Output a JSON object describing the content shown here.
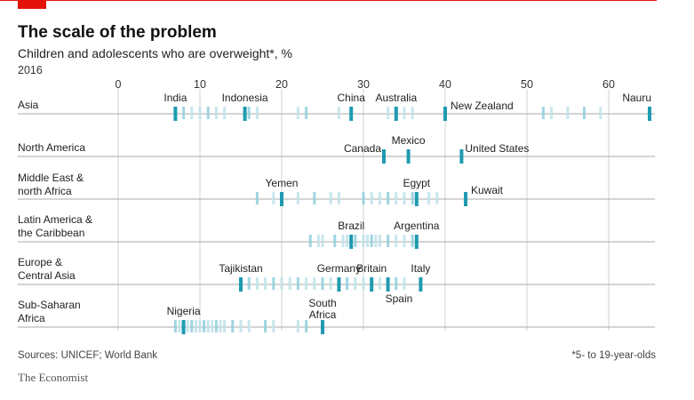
{
  "header": {
    "title": "The scale of the problem",
    "subtitle": "Children and adolescents who are overweight*, %",
    "year": "2016"
  },
  "footer": {
    "sources": "Sources: UNICEF; World Bank",
    "note": "*5- to 19-year-olds",
    "brand": "The Economist"
  },
  "colors": {
    "accent_red": "#e3120b",
    "highlight": "#1f9bb0",
    "strip_light": "#bfe2ea",
    "strip_mid": "#8fcfdc",
    "grid": "#d0d0d0",
    "axis_line": "#aaaaaa"
  },
  "chart_data": {
    "type": "strip",
    "x_range": [
      0,
      65
    ],
    "x_ticks": [
      0,
      10,
      20,
      30,
      40,
      50,
      60
    ],
    "grid": true,
    "rows": [
      {
        "region": "Asia",
        "others": [
          8,
          9,
          10,
          11,
          12,
          13,
          16,
          17,
          22,
          23,
          27,
          33,
          34,
          35,
          36,
          52,
          53,
          55,
          57,
          59
        ],
        "highlights": [
          {
            "name": "India",
            "value": 7
          },
          {
            "name": "Indonesia",
            "value": 15.5
          },
          {
            "name": "China",
            "value": 28.5
          },
          {
            "name": "Australia",
            "value": 34
          },
          {
            "name": "New Zealand",
            "value": 40
          },
          {
            "name": "Nauru",
            "value": 65
          }
        ]
      },
      {
        "region": "North America",
        "others": [],
        "highlights": [
          {
            "name": "Canada",
            "value": 32.5
          },
          {
            "name": "Mexico",
            "value": 35.5
          },
          {
            "name": "United States",
            "value": 42
          }
        ]
      },
      {
        "region": "Middle East & north Africa",
        "others": [
          17,
          19,
          22,
          24,
          26,
          27,
          30,
          31,
          32,
          33,
          34,
          35,
          36,
          38,
          39
        ],
        "highlights": [
          {
            "name": "Yemen",
            "value": 20
          },
          {
            "name": "Egypt",
            "value": 36.5
          },
          {
            "name": "Kuwait",
            "value": 42.5
          }
        ]
      },
      {
        "region": "Latin America & the Caribbean",
        "others": [
          23.5,
          24.5,
          25,
          26.5,
          27.5,
          28,
          29,
          30,
          30.5,
          31,
          31.5,
          32,
          33,
          34,
          35,
          36
        ],
        "highlights": [
          {
            "name": "Brazil",
            "value": 28.5
          },
          {
            "name": "Argentina",
            "value": 36.5
          }
        ]
      },
      {
        "region": "Europe & Central Asia",
        "others": [
          16,
          17,
          18,
          19,
          20,
          21,
          22,
          23,
          24,
          25,
          26,
          27,
          28,
          29,
          30,
          31,
          32,
          33,
          34,
          35
        ],
        "highlights": [
          {
            "name": "Tajikistan",
            "value": 15
          },
          {
            "name": "Germany",
            "value": 27
          },
          {
            "name": "Britain",
            "value": 31
          },
          {
            "name": "Spain",
            "value": 33
          },
          {
            "name": "Italy",
            "value": 37
          }
        ]
      },
      {
        "region": "Sub-Saharan Africa",
        "others": [
          7,
          7.5,
          8.5,
          9,
          9.5,
          10,
          10.5,
          11,
          11.5,
          12,
          12.5,
          13,
          14,
          15,
          16,
          18,
          19,
          22,
          23
        ],
        "highlights": [
          {
            "name": "Nigeria",
            "value": 8
          },
          {
            "name": "South Africa",
            "value": 25
          }
        ]
      }
    ]
  }
}
